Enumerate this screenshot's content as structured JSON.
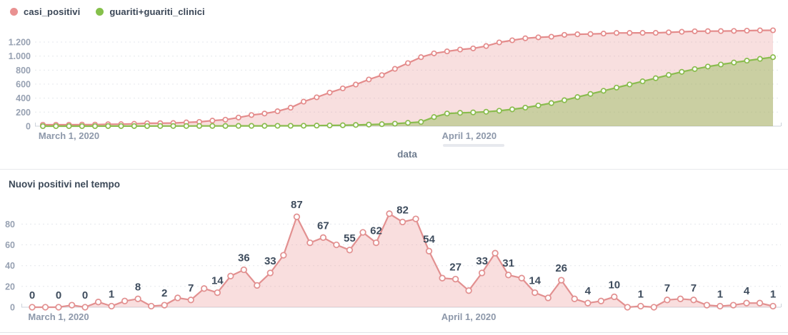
{
  "legend": {
    "items": [
      {
        "label": "casi_positivi",
        "color": "#e99191"
      },
      {
        "label": "guariti+guariti_clinici",
        "color": "#85c04b"
      }
    ]
  },
  "chart_data": [
    {
      "type": "area",
      "title": "",
      "xlabel": "data",
      "ylabel": "",
      "x_unit": "day",
      "xticks": [
        {
          "label": "March 1, 2020",
          "i": 2
        },
        {
          "label": "April 1, 2020",
          "i": 32.7
        }
      ],
      "yticks": [
        0,
        200,
        400,
        600,
        800,
        1000,
        1200
      ],
      "ytick_labels": [
        "0",
        "200",
        "400",
        "600",
        "800",
        "1.000",
        "1.200"
      ],
      "ylim": [
        0,
        1400
      ],
      "grid": "horizontal-dashed",
      "legend_position": "top-left",
      "series": [
        {
          "name": "casi_positivi",
          "color": "#e48c8c",
          "fill": "rgba(232,148,148,0.30)",
          "values": [
            20,
            20,
            20,
            22,
            22,
            27,
            28,
            34,
            42,
            43,
            45,
            54,
            61,
            79,
            93,
            123,
            159,
            180,
            213,
            263,
            350,
            412,
            479,
            539,
            594,
            666,
            728,
            818,
            900,
            985,
            1039,
            1067,
            1094,
            1110,
            1143,
            1195,
            1226,
            1254,
            1268,
            1277,
            1303,
            1311,
            1315,
            1321,
            1331,
            1331,
            1332,
            1332,
            1339,
            1347,
            1354,
            1356,
            1357,
            1359,
            1363,
            1367,
            1368
          ]
        },
        {
          "name": "guariti+guariti_clinici",
          "color": "#8abc4e",
          "fill": "rgba(139,186,78,0.42)",
          "values": [
            0,
            0,
            0,
            0,
            0,
            1,
            1,
            1,
            1,
            2,
            2,
            2,
            3,
            3,
            3,
            4,
            4,
            4,
            5,
            5,
            6,
            8,
            10,
            13,
            17,
            22,
            28,
            36,
            48,
            60,
            130,
            180,
            190,
            196,
            205,
            220,
            240,
            265,
            295,
            330,
            370,
            415,
            460,
            505,
            550,
            595,
            640,
            685,
            730,
            775,
            815,
            850,
            880,
            908,
            935,
            960,
            985
          ]
        }
      ]
    },
    {
      "type": "area",
      "title": "Nuovi positivi nel tempo",
      "xlabel": "",
      "ylabel": "",
      "x_unit": "day",
      "xticks": [
        {
          "label": "March 1, 2020",
          "i": 2
        },
        {
          "label": "April 1, 2020",
          "i": 33
        }
      ],
      "yticks": [
        0,
        20,
        40,
        60,
        80
      ],
      "ytick_labels": [
        "0",
        "20",
        "40",
        "60",
        "80"
      ],
      "ylim": [
        0,
        103
      ],
      "grid": "horizontal-dashed",
      "label_every": 2,
      "point_labels_shown": [
        0,
        0,
        0,
        1,
        8,
        2,
        7,
        14,
        36,
        33,
        87,
        67,
        55,
        62,
        82,
        54,
        27,
        33,
        31,
        14,
        26,
        4,
        10,
        1,
        7,
        7,
        1,
        4,
        1
      ],
      "series": [
        {
          "name": "nuovi_positivi",
          "color": "#e29090",
          "fill": "rgba(238,160,160,0.35)",
          "values": [
            0,
            0,
            0,
            2,
            0,
            5,
            1,
            6,
            8,
            1,
            2,
            9,
            7,
            18,
            14,
            30,
            36,
            21,
            33,
            50,
            87,
            62,
            67,
            60,
            55,
            72,
            62,
            90,
            82,
            85,
            54,
            28,
            27,
            16,
            33,
            52,
            31,
            28,
            14,
            9,
            26,
            8,
            4,
            6,
            10,
            0,
            1,
            0,
            7,
            8,
            7,
            2,
            1,
            2,
            4,
            4,
            1
          ]
        }
      ]
    }
  ]
}
